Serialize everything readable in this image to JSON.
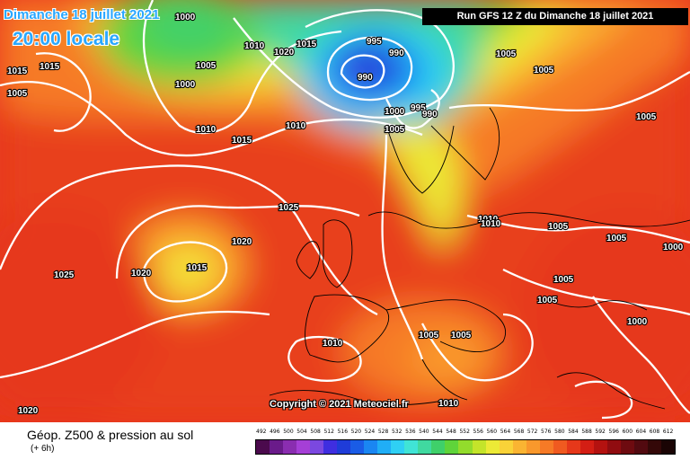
{
  "header": {
    "date": "Dimanche 18 juillet 2021",
    "time": "20:00 locale",
    "run": "Run GFS 12 Z du Dimanche 18 juillet 2021"
  },
  "copyright": "Copyright © 2021 Meteociel.fr",
  "footer": {
    "title": "Géop. Z500 & pression au sol",
    "subtitle": "(+ 6h)"
  },
  "legend": {
    "ticks": [
      "492",
      "496",
      "500",
      "504",
      "508",
      "512",
      "516",
      "520",
      "524",
      "528",
      "532",
      "536",
      "540",
      "544",
      "548",
      "552",
      "556",
      "560",
      "564",
      "568",
      "572",
      "576",
      "580",
      "584",
      "588",
      "592",
      "596",
      "600",
      "604",
      "608",
      "612"
    ],
    "colors": [
      "#4b0a4d",
      "#6a1b8a",
      "#8a2db0",
      "#a53fd6",
      "#7b48e0",
      "#3f2ee0",
      "#1f3cd8",
      "#1a5ce6",
      "#1a86f2",
      "#20aef6",
      "#2fd0f4",
      "#40e4d6",
      "#40d9a0",
      "#3fd06a",
      "#5fd43a",
      "#93dc2c",
      "#c4e42a",
      "#ecea36",
      "#f9d238",
      "#fab432",
      "#f9982c",
      "#f67a26",
      "#f05a20",
      "#e6381a",
      "#d41e14",
      "#b41210",
      "#900c10",
      "#6e0b10",
      "#520a10",
      "#340808",
      "#1a0404"
    ]
  },
  "map_labels": {
    "isobars": [
      "1000",
      "1005",
      "1010",
      "1015",
      "1020",
      "1025",
      "995",
      "990"
    ],
    "cities_note": ""
  }
}
